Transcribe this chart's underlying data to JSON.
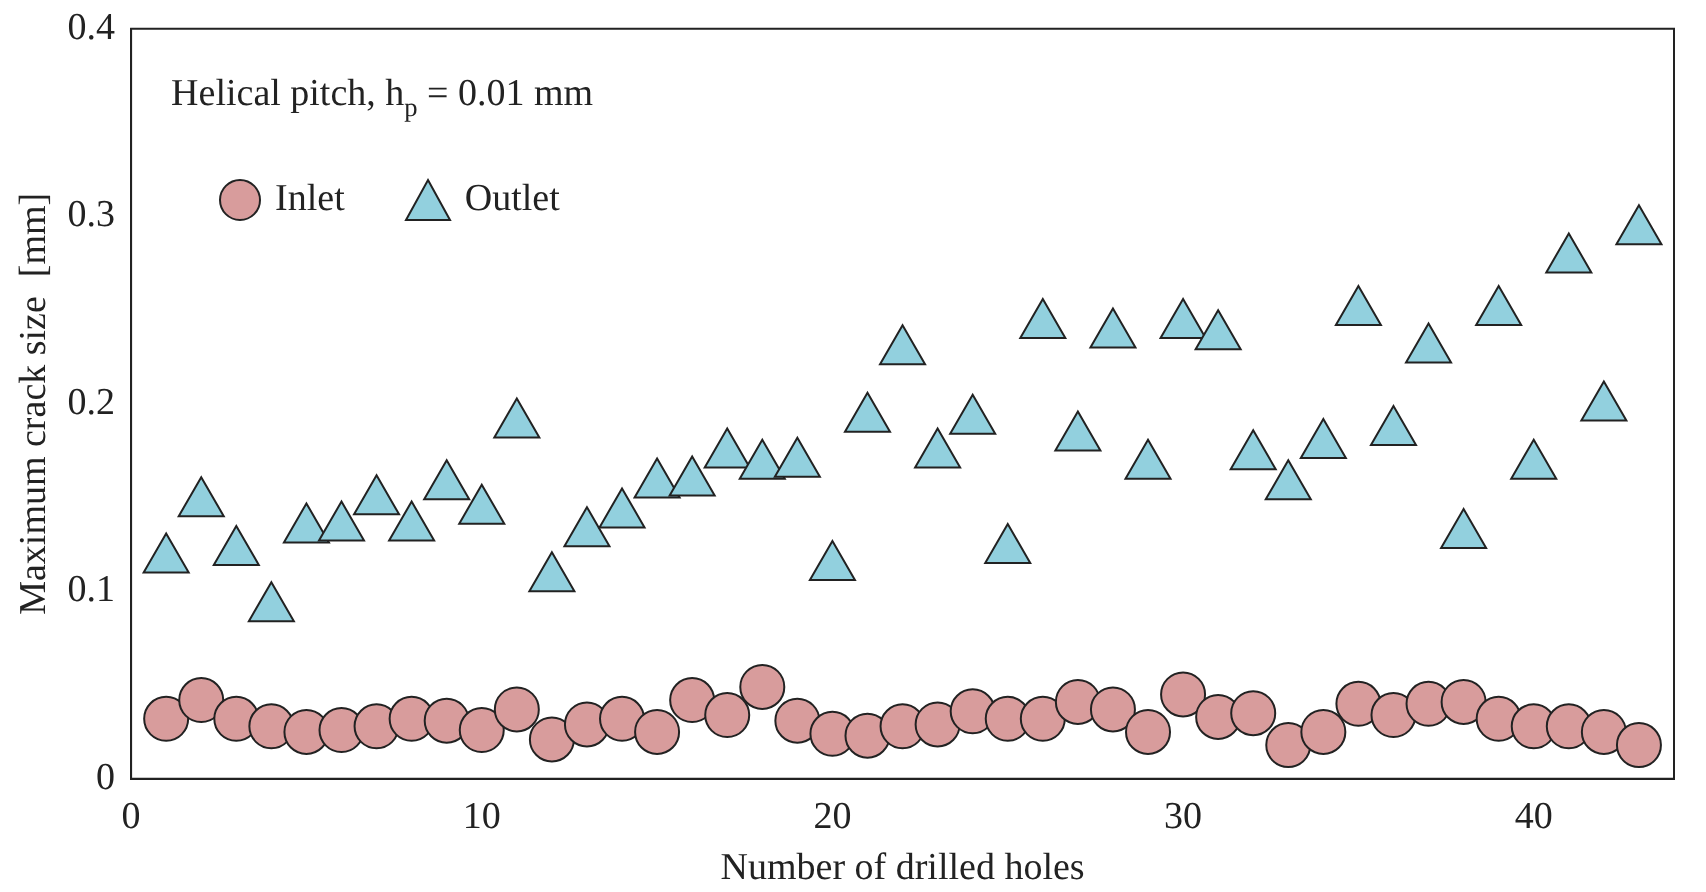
{
  "chart_data": {
    "type": "scatter",
    "xlabel": "Number of drilled holes",
    "ylabel": "Maximum crack size  [mm]",
    "annotations": [
      "Helical pitch, h$_{p}$ = 0.01 mm"
    ],
    "x": [
      1,
      2,
      3,
      4,
      5,
      6,
      7,
      8,
      9,
      10,
      11,
      12,
      13,
      14,
      15,
      16,
      17,
      18,
      19,
      20,
      21,
      22,
      23,
      24,
      25,
      26,
      27,
      28,
      29,
      30,
      31,
      32,
      33,
      34,
      35,
      36,
      37,
      38,
      39,
      40,
      41,
      42,
      43
    ],
    "series": [
      {
        "name": "Inlet",
        "color": "#d89c9c",
        "marker": "circle",
        "values": [
          0.032,
          0.042,
          0.032,
          0.028,
          0.025,
          0.026,
          0.028,
          0.032,
          0.031,
          0.026,
          0.037,
          0.021,
          0.029,
          0.032,
          0.025,
          0.042,
          0.034,
          0.049,
          0.031,
          0.024,
          0.023,
          0.028,
          0.029,
          0.036,
          0.032,
          0.032,
          0.041,
          0.037,
          0.025,
          0.045,
          0.033,
          0.035,
          0.018,
          0.025,
          0.04,
          0.034,
          0.04,
          0.041,
          0.032,
          0.028,
          0.028,
          0.025,
          0.018
        ]
      },
      {
        "name": "Outlet",
        "color": "#92d0de",
        "marker": "triangle",
        "values": [
          0.117,
          0.147,
          0.121,
          0.091,
          0.133,
          0.134,
          0.148,
          0.134,
          0.156,
          0.143,
          0.189,
          0.107,
          0.131,
          0.141,
          0.157,
          0.158,
          0.173,
          0.167,
          0.168,
          0.113,
          0.192,
          0.228,
          0.173,
          0.191,
          0.122,
          0.242,
          0.182,
          0.237,
          0.167,
          0.242,
          0.236,
          0.172,
          0.156,
          0.178,
          0.249,
          0.185,
          0.229,
          0.13,
          0.249,
          0.167,
          0.277,
          0.198,
          0.292
        ]
      }
    ],
    "xlim": [
      0,
      44
    ],
    "xticks": [
      0,
      10,
      20,
      30,
      40
    ],
    "ylim": [
      0,
      0.4
    ],
    "yticks": [
      0,
      0.1,
      0.2,
      0.3,
      0.4
    ],
    "grid": false,
    "legend": "top left"
  }
}
